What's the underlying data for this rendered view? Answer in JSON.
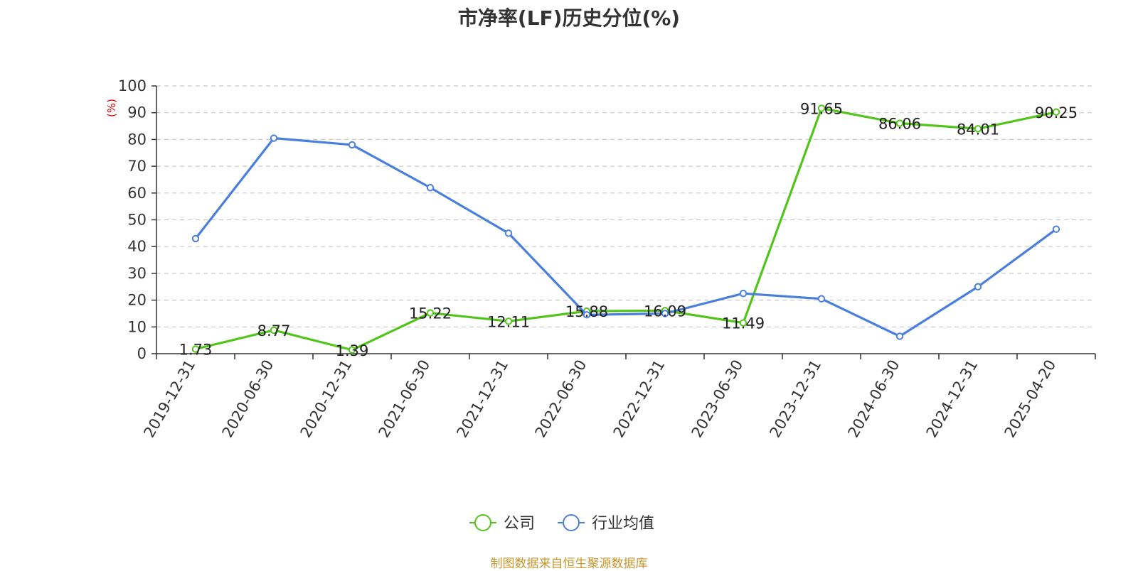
{
  "chart_data": {
    "type": "line",
    "title": "市净率(LF)历史分位(%)",
    "ylabel": "(%)",
    "xlabel": "",
    "categories": [
      "2019-12-31",
      "2020-06-30",
      "2020-12-31",
      "2021-06-30",
      "2021-12-31",
      "2022-06-30",
      "2022-12-31",
      "2023-06-30",
      "2023-12-31",
      "2024-06-30",
      "2024-12-31",
      "2025-04-20"
    ],
    "ylim": [
      0,
      100
    ],
    "yticks": [
      0,
      10,
      20,
      30,
      40,
      50,
      60,
      70,
      80,
      90,
      100
    ],
    "grid": true,
    "legend_position": "bottom",
    "series": [
      {
        "name": "公司",
        "color": "#52c41a",
        "values": [
          1.73,
          8.77,
          1.39,
          15.22,
          12.11,
          15.88,
          16.09,
          11.49,
          91.65,
          86.06,
          84.01,
          90.25
        ],
        "labels": [
          "1.73",
          "8.77",
          "1.39",
          "15.22",
          "12.11",
          "15.88",
          "16.09",
          "11.49",
          "91.65",
          "86.06",
          "84.01",
          "90.25"
        ]
      },
      {
        "name": "行业均值",
        "color": "#4a7fdc",
        "values": [
          43,
          80.5,
          78,
          62,
          45,
          14.5,
          15,
          22.5,
          20.5,
          6.5,
          25,
          46.5
        ]
      }
    ]
  },
  "source": "制图数据来自恒生聚源数据库"
}
